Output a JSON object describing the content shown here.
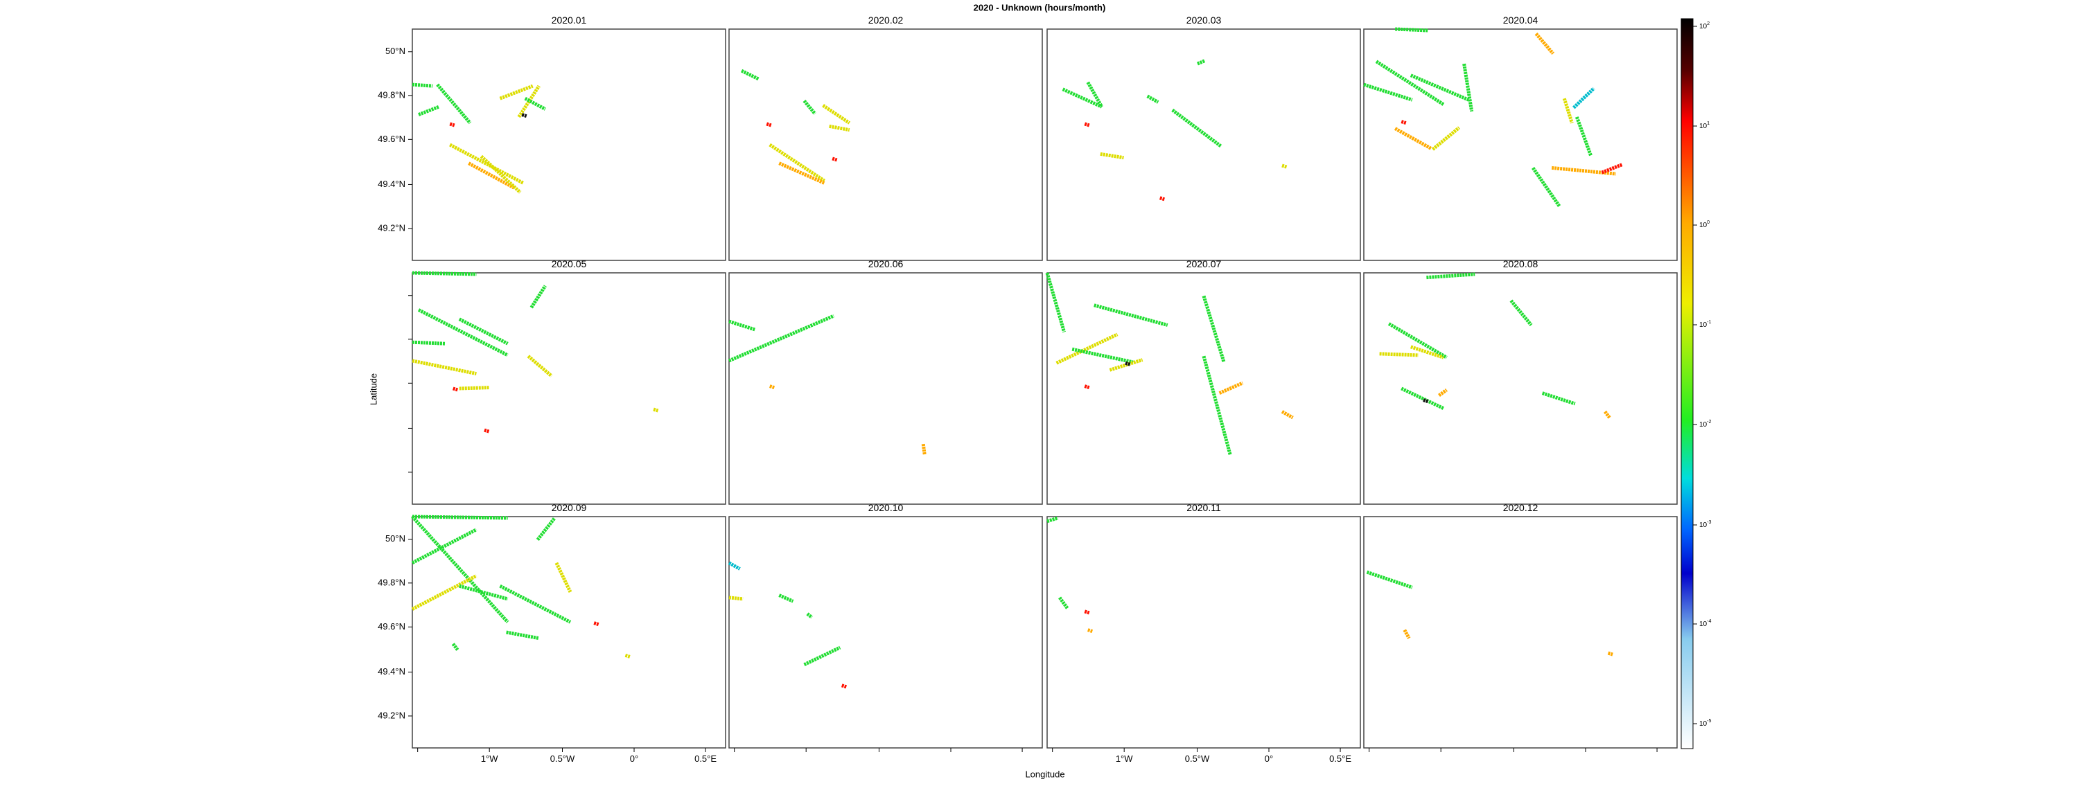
{
  "title": "2020 - Unknown (hours/month)",
  "x_label": "Longitude",
  "y_label": "Latitude",
  "panels": [
    "2020.01",
    "2020.02",
    "2020.03",
    "2020.04",
    "2020.05",
    "2020.06",
    "2020.07",
    "2020.08",
    "2020.09",
    "2020.10",
    "2020.11",
    "2020.12"
  ],
  "x_tick_labels": [
    "1°W",
    "0.5°W",
    "0°",
    "0.5°E"
  ],
  "y_tick_labels": [
    "50°N",
    "49.8°N",
    "49.6°N",
    "49.4°N",
    "49.2°N"
  ],
  "colorbar_labels": [
    {
      "base": "10",
      "exp": "2"
    },
    {
      "base": "10",
      "exp": "1"
    },
    {
      "base": "10",
      "exp": "0"
    },
    {
      "base": "10",
      "exp": "-1"
    },
    {
      "base": "10",
      "exp": "-2"
    },
    {
      "base": "10",
      "exp": "-3"
    },
    {
      "base": "10",
      "exp": "-4"
    },
    {
      "base": "10",
      "exp": "-5"
    }
  ]
}
